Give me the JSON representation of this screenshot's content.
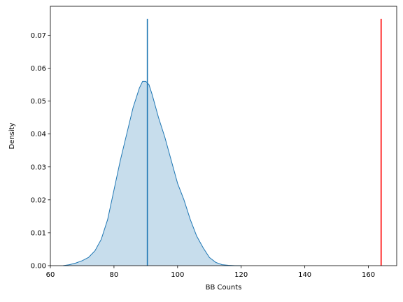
{
  "chart_data": {
    "type": "area",
    "title": "",
    "xlabel": "BB Counts",
    "ylabel": "Density",
    "xlim": [
      60.0,
      168.9
    ],
    "ylim": [
      0,
      0.0788
    ],
    "xticks": [
      60,
      80,
      100,
      120,
      140,
      160
    ],
    "yticks": [
      0.0,
      0.01,
      0.02,
      0.03,
      0.04,
      0.05,
      0.06,
      0.07
    ],
    "grid": false,
    "legend": "none",
    "series": [
      {
        "kind": "kde",
        "color": "#1f77b4",
        "fill_color": "#1f77b4",
        "fill_opacity": 0.25,
        "x": [
          64,
          66,
          68,
          70,
          72,
          74,
          76,
          78,
          80,
          82,
          84,
          86,
          88,
          89,
          90,
          91,
          92,
          94,
          96,
          98,
          100,
          102,
          104,
          106,
          108,
          110,
          112,
          114,
          116,
          118,
          120
        ],
        "y": [
          0.0,
          0.0003,
          0.0008,
          0.0015,
          0.0025,
          0.0045,
          0.008,
          0.014,
          0.023,
          0.032,
          0.04,
          0.048,
          0.054,
          0.056,
          0.056,
          0.055,
          0.052,
          0.045,
          0.039,
          0.032,
          0.025,
          0.02,
          0.014,
          0.009,
          0.0055,
          0.0025,
          0.001,
          0.0003,
          0.0001,
          0.0,
          0.0
        ]
      }
    ],
    "vlines": [
      {
        "x": 90.5,
        "y_top": 0.075,
        "color": "#1f77b4"
      },
      {
        "x": 164.0,
        "y_top": 0.075,
        "color": "#ff0000"
      }
    ]
  }
}
